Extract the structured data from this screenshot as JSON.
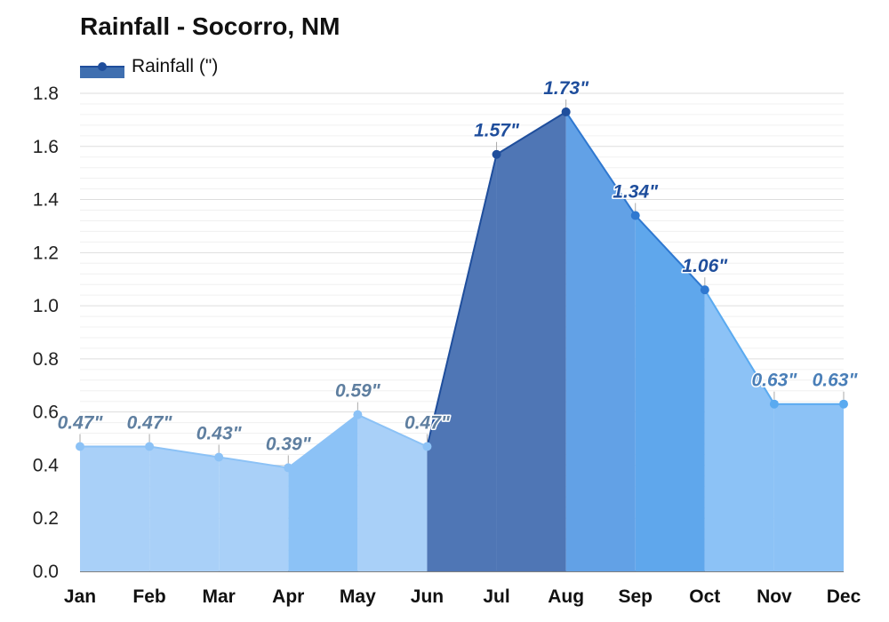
{
  "chart_data": {
    "type": "area",
    "title": "Rainfall - Socorro, NM",
    "categories": [
      "Jan",
      "Feb",
      "Mar",
      "Apr",
      "May",
      "Jun",
      "Jul",
      "Aug",
      "Sep",
      "Oct",
      "Nov",
      "Dec"
    ],
    "series": [
      {
        "name": "Rainfall (\")",
        "values": [
          0.47,
          0.47,
          0.43,
          0.39,
          0.59,
          0.47,
          1.57,
          1.73,
          1.34,
          1.06,
          0.63,
          0.63
        ],
        "labels": [
          "0.47\"",
          "0.47\"",
          "0.43\"",
          "0.39\"",
          "0.59\"",
          "0.47\"",
          "1.57\"",
          "1.73\"",
          "1.34\"",
          "1.06\"",
          "0.63\"",
          "0.63\""
        ]
      }
    ],
    "ylim": [
      0,
      1.8
    ],
    "yticks": [
      "0.0",
      "0.2",
      "0.4",
      "0.6",
      "0.8",
      "1.0",
      "1.2",
      "1.4",
      "1.6",
      "1.8"
    ],
    "xlabel": "",
    "ylabel": "",
    "grid": true,
    "legend": "top-left",
    "colors": {
      "segment_fills": [
        "#a9d0f8",
        "#a9d0f8",
        "#a9d0f8",
        "#8cc2f6",
        "#a9d0f8",
        "#4f76b5",
        "#4f76b5",
        "#62a1e6",
        "#5fa7ec",
        "#8cc2f6",
        "#8cc2f6"
      ],
      "point_colors": [
        "#8cc2f6",
        "#8cc2f6",
        "#8cc2f6",
        "#8cc2f6",
        "#8cc2f6",
        "#8cc2f6",
        "#1f4e9c",
        "#1f4e9c",
        "#2f78d0",
        "#2f78d0",
        "#5aaaf0",
        "#5aaaf0"
      ],
      "label_colors": [
        "#5f7fa0",
        "#5f7fa0",
        "#5f7fa0",
        "#5f7fa0",
        "#5f7fa0",
        "#5f7fa0",
        "#1f4e9c",
        "#1f4e9c",
        "#1f4e9c",
        "#1f4e9c",
        "#4a7fb8",
        "#4a7fb8"
      ],
      "gridline": "#dddddd",
      "legend_fill": "#3f6fb0",
      "legend_line": "#1f4e9c"
    }
  }
}
